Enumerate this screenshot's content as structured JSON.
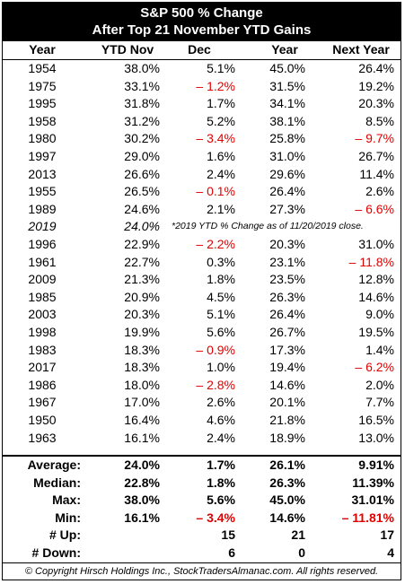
{
  "title_line1": "S&P 500 % Change",
  "title_line2": "After Top 21 November YTD Gains",
  "headers": [
    "Year",
    "YTD Nov",
    "Dec",
    "Year",
    "Next Year"
  ],
  "rows": [
    {
      "year": "1954",
      "ytd": "38.0%",
      "dec": "5.1%",
      "yr": "45.0%",
      "next": "26.4%"
    },
    {
      "year": "1975",
      "ytd": "33.1%",
      "dec": "– 1.2%",
      "yr": "31.5%",
      "next": "19.2%"
    },
    {
      "year": "1995",
      "ytd": "31.8%",
      "dec": "1.7%",
      "yr": "34.1%",
      "next": "20.3%"
    },
    {
      "year": "1958",
      "ytd": "31.2%",
      "dec": "5.2%",
      "yr": "38.1%",
      "next": "8.5%"
    },
    {
      "year": "1980",
      "ytd": "30.2%",
      "dec": "– 3.4%",
      "yr": "25.8%",
      "next": "– 9.7%"
    },
    {
      "year": "1997",
      "ytd": "29.0%",
      "dec": "1.6%",
      "yr": "31.0%",
      "next": "26.7%"
    },
    {
      "year": "2013",
      "ytd": "26.6%",
      "dec": "2.4%",
      "yr": "29.6%",
      "next": "11.4%"
    },
    {
      "year": "1955",
      "ytd": "26.5%",
      "dec": "– 0.1%",
      "yr": "26.4%",
      "next": "2.6%"
    },
    {
      "year": "1989",
      "ytd": "24.6%",
      "dec": "2.1%",
      "yr": "27.3%",
      "next": "– 6.6%"
    },
    {
      "year": "2019",
      "ytd": "24.0%",
      "dec": "",
      "yr": "",
      "next": "",
      "note": "*2019 YTD % Change as of 11/20/2019 close."
    },
    {
      "year": "1996",
      "ytd": "22.9%",
      "dec": "– 2.2%",
      "yr": "20.3%",
      "next": "31.0%"
    },
    {
      "year": "1961",
      "ytd": "22.7%",
      "dec": "0.3%",
      "yr": "23.1%",
      "next": "– 11.8%"
    },
    {
      "year": "2009",
      "ytd": "21.3%",
      "dec": "1.8%",
      "yr": "23.5%",
      "next": "12.8%"
    },
    {
      "year": "1985",
      "ytd": "20.9%",
      "dec": "4.5%",
      "yr": "26.3%",
      "next": "14.6%"
    },
    {
      "year": "2003",
      "ytd": "20.3%",
      "dec": "5.1%",
      "yr": "26.4%",
      "next": "9.0%"
    },
    {
      "year": "1998",
      "ytd": "19.9%",
      "dec": "5.6%",
      "yr": "26.7%",
      "next": "19.5%"
    },
    {
      "year": "1983",
      "ytd": "18.3%",
      "dec": "– 0.9%",
      "yr": "17.3%",
      "next": "1.4%"
    },
    {
      "year": "2017",
      "ytd": "18.3%",
      "dec": "1.0%",
      "yr": "19.4%",
      "next": "– 6.2%"
    },
    {
      "year": "1986",
      "ytd": "18.0%",
      "dec": "– 2.8%",
      "yr": "14.6%",
      "next": "2.0%"
    },
    {
      "year": "1967",
      "ytd": "17.0%",
      "dec": "2.6%",
      "yr": "20.1%",
      "next": "7.7%"
    },
    {
      "year": "1950",
      "ytd": "16.4%",
      "dec": "4.6%",
      "yr": "21.8%",
      "next": "16.5%"
    },
    {
      "year": "1963",
      "ytd": "16.1%",
      "dec": "2.4%",
      "yr": "18.9%",
      "next": "13.0%"
    }
  ],
  "summary": [
    {
      "label": "Average:",
      "ytd": "24.0%",
      "dec": "1.7%",
      "yr": "26.1%",
      "next": "9.91%"
    },
    {
      "label": "Median:",
      "ytd": "22.8%",
      "dec": "1.8%",
      "yr": "26.3%",
      "next": "11.39%"
    },
    {
      "label": "Max:",
      "ytd": "38.0%",
      "dec": "5.6%",
      "yr": "45.0%",
      "next": "31.01%"
    },
    {
      "label": "Min:",
      "ytd": "16.1%",
      "dec": "– 3.4%",
      "yr": "14.6%",
      "next": "– 11.81%"
    },
    {
      "label": "# Up:",
      "ytd": "",
      "dec": "15",
      "yr": "21",
      "next": "17"
    },
    {
      "label": "# Down:",
      "ytd": "",
      "dec": "6",
      "yr": "0",
      "next": "4"
    }
  ],
  "copyright": "© Copyright Hirsch Holdings Inc., StockTradersAlmanac.com. All rights reserved.",
  "colors": {
    "negative": "#e10000",
    "title_bg": "#000000"
  }
}
